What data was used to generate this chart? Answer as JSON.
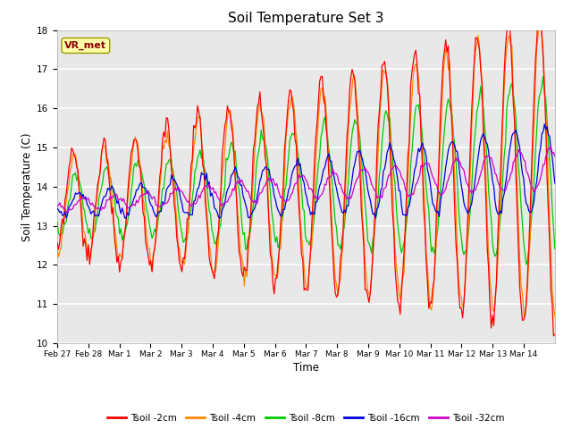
{
  "title": "Soil Temperature Set 3",
  "xlabel": "Time",
  "ylabel": "Soil Temperature (C)",
  "ylim": [
    10.0,
    18.0
  ],
  "yticks": [
    10.0,
    11.0,
    12.0,
    13.0,
    14.0,
    15.0,
    16.0,
    17.0,
    18.0
  ],
  "date_labels": [
    "Feb 27",
    "Feb 28",
    "Mar 1",
    "Mar 2",
    "Mar 3",
    "Mar 4",
    "Mar 5",
    "Mar 6",
    "Mar 7",
    "Mar 8",
    "Mar 9",
    "Mar 10",
    "Mar 11",
    "Mar 12",
    "Mar 13",
    "Mar 14"
  ],
  "colors": {
    "Tsoil -2cm": "#ff0000",
    "Tsoil -4cm": "#ff8800",
    "Tsoil -8cm": "#00cc00",
    "Tsoil -16cm": "#0000dd",
    "Tsoil -32cm": "#cc00cc"
  },
  "legend_label": "VR_met",
  "plot_bg": "#e8e8e8",
  "fig_bg": "#ffffff",
  "grid_color": "#ffffff"
}
